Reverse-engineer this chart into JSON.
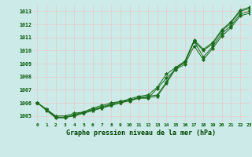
{
  "title": "Graphe pression niveau de la mer (hPa)",
  "bg_color": "#cceae8",
  "grid_color": "#e8c8c8",
  "line_color": "#1a6b1a",
  "xlim": [
    -0.5,
    23
  ],
  "ylim": [
    1004.5,
    1013.5
  ],
  "yticks": [
    1005,
    1006,
    1007,
    1008,
    1009,
    1010,
    1011,
    1012,
    1013
  ],
  "xticks": [
    0,
    1,
    2,
    3,
    4,
    5,
    6,
    7,
    8,
    9,
    10,
    11,
    12,
    13,
    14,
    15,
    16,
    17,
    18,
    19,
    20,
    21,
    22,
    23
  ],
  "series1": [
    1006.0,
    1005.5,
    1004.9,
    1004.9,
    1005.0,
    1005.2,
    1005.4,
    1005.6,
    1005.8,
    1006.0,
    1006.2,
    1006.4,
    1006.4,
    1006.5,
    1007.5,
    1008.6,
    1009.1,
    1010.7,
    1010.0,
    1010.5,
    1011.5,
    1012.1,
    1013.0,
    1013.2
  ],
  "series2": [
    1006.0,
    1005.5,
    1004.9,
    1004.9,
    1005.1,
    1005.3,
    1005.5,
    1005.7,
    1005.9,
    1006.1,
    1006.2,
    1006.4,
    1006.5,
    1006.6,
    1007.6,
    1008.7,
    1009.2,
    1010.8,
    1010.1,
    1010.6,
    1011.6,
    1012.2,
    1013.1,
    1013.3
  ],
  "series3": [
    1006.0,
    1005.5,
    1005.0,
    1005.0,
    1005.2,
    1005.3,
    1005.6,
    1005.8,
    1006.0,
    1006.1,
    1006.3,
    1006.5,
    1006.6,
    1007.2,
    1008.2,
    1008.7,
    1009.1,
    1010.7,
    1009.5,
    1010.3,
    1011.3,
    1011.9,
    1012.8,
    1013.0
  ],
  "series4": [
    1006.0,
    1005.4,
    1004.85,
    1004.85,
    1005.05,
    1005.25,
    1005.45,
    1005.65,
    1005.85,
    1006.0,
    1006.15,
    1006.35,
    1006.35,
    1007.1,
    1007.9,
    1008.55,
    1008.95,
    1010.35,
    1009.3,
    1010.15,
    1011.1,
    1011.75,
    1012.65,
    1012.85
  ]
}
